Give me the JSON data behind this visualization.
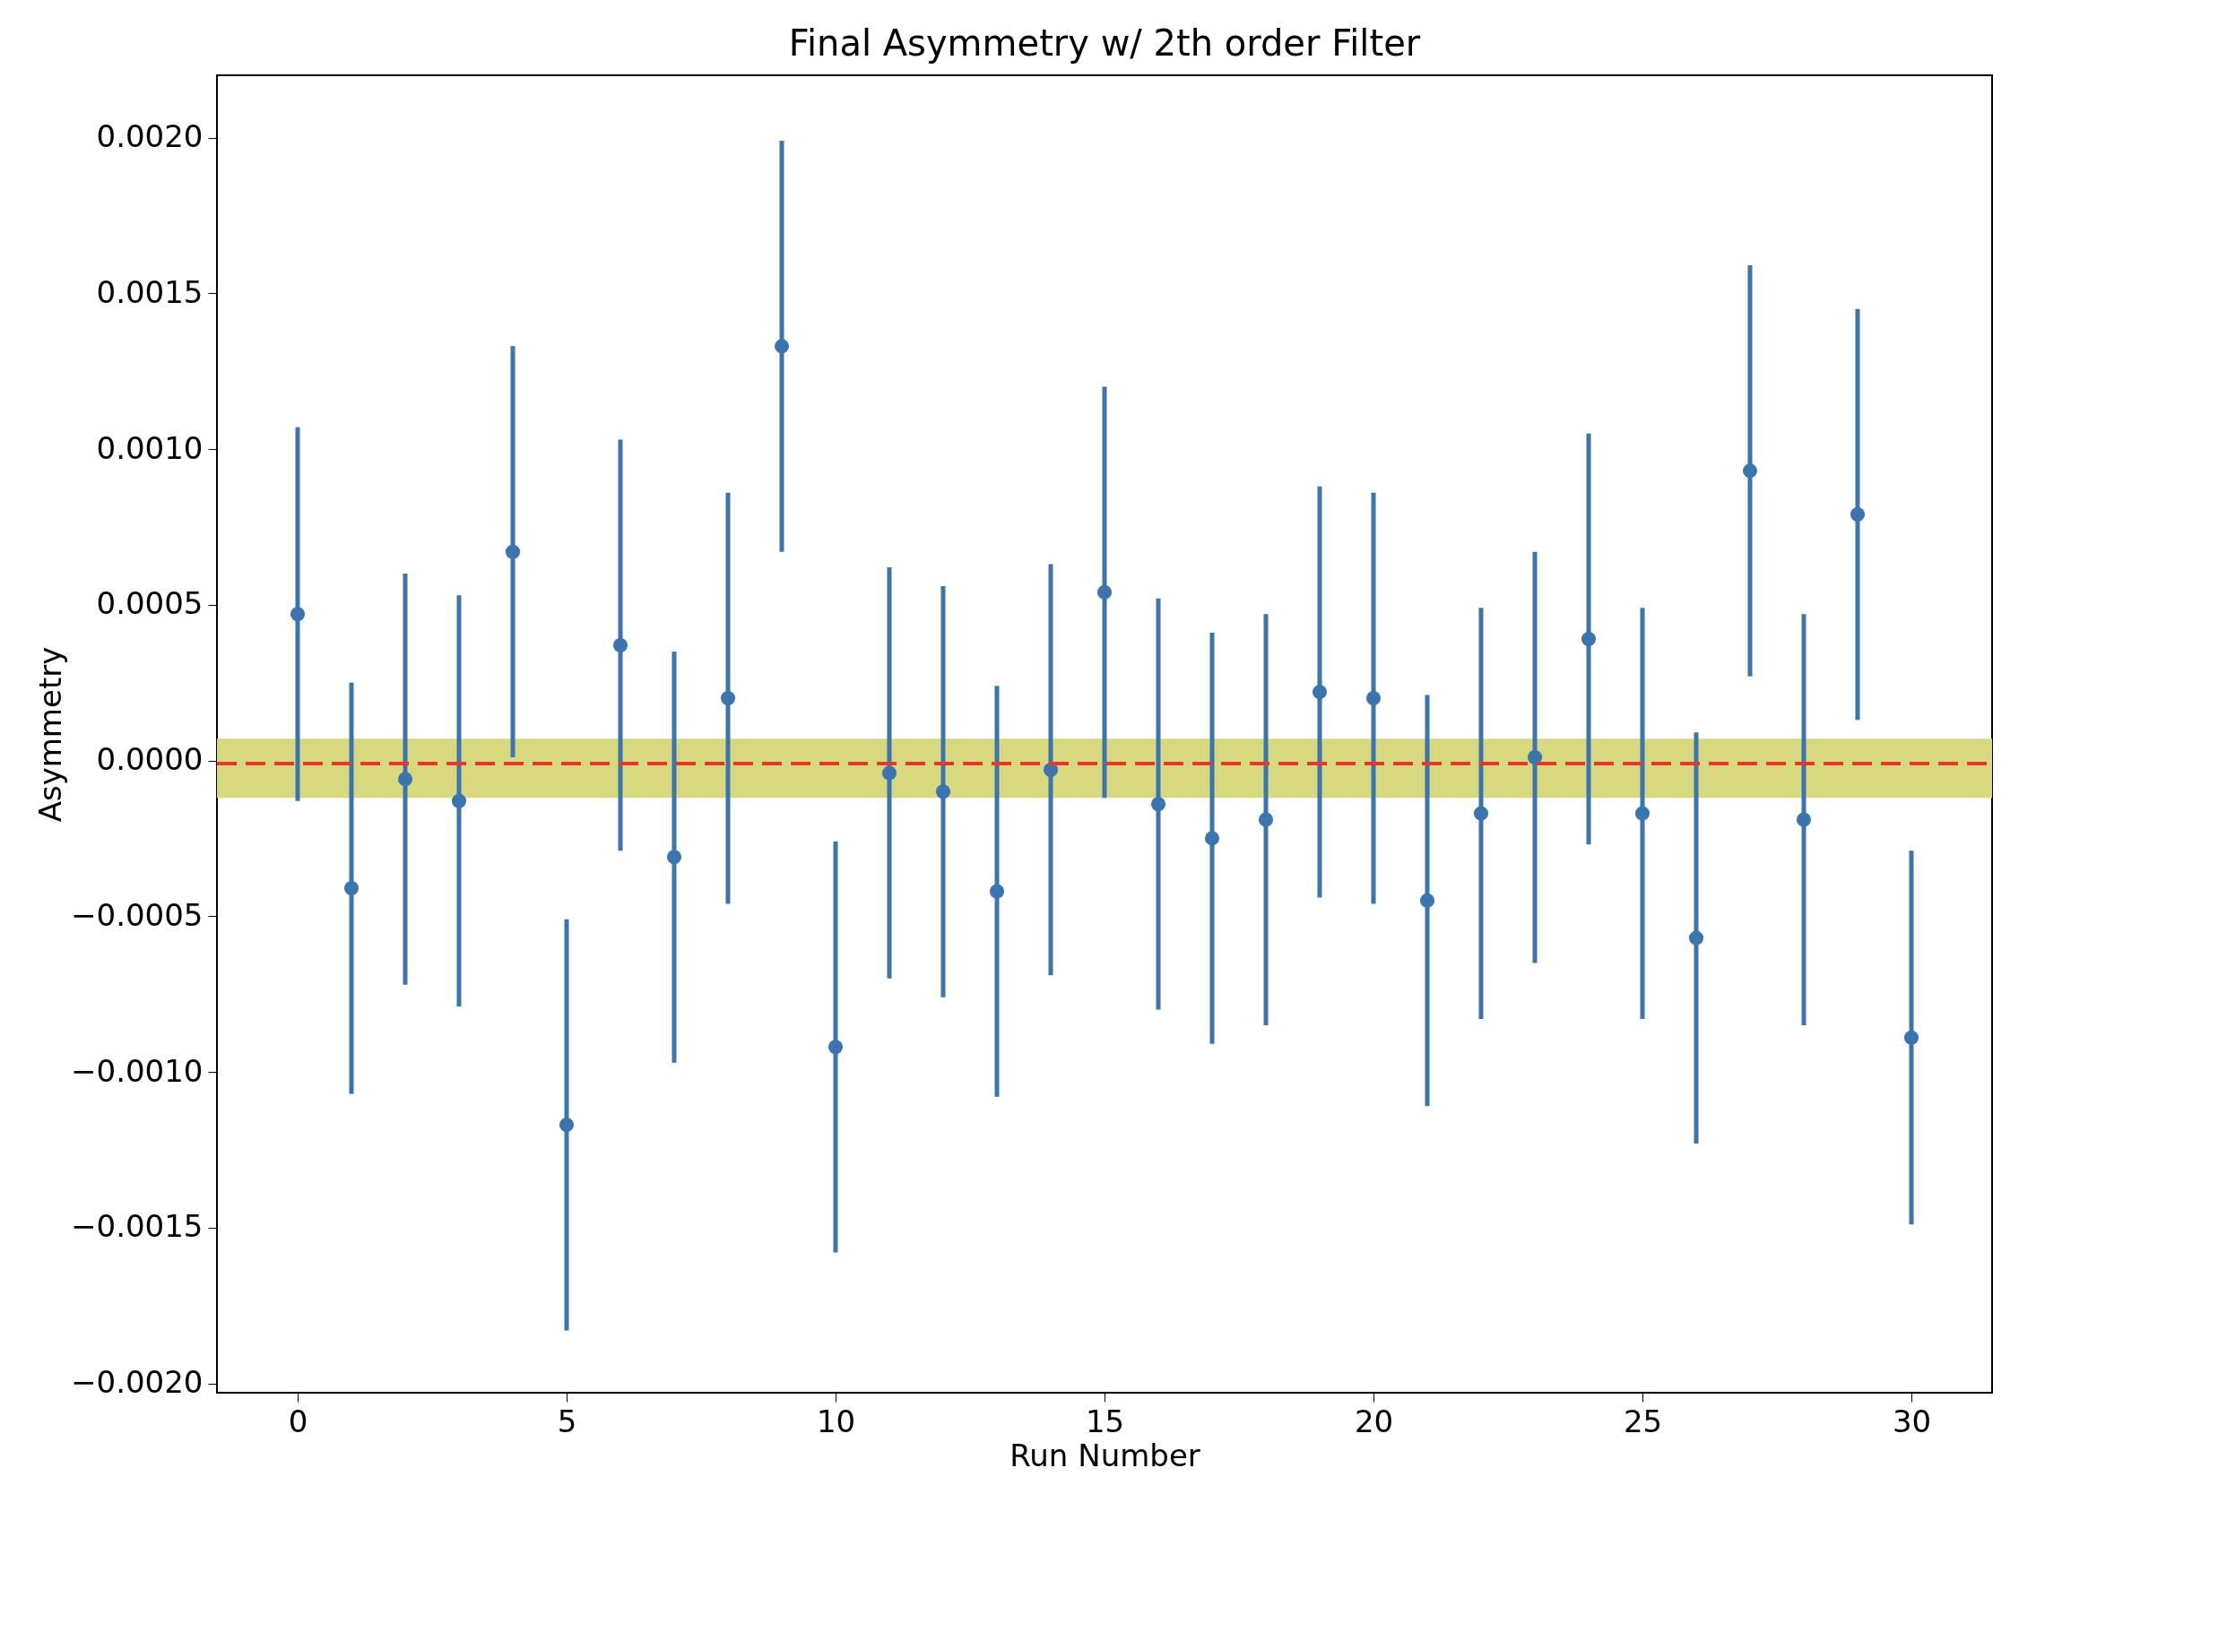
{
  "chart_data": {
    "type": "scatter",
    "title": "Final Asymmetry w/ 2th order Filter",
    "xlabel": "Run Number",
    "ylabel": "Asymmetry",
    "x": [
      0,
      1,
      2,
      3,
      4,
      5,
      6,
      7,
      8,
      9,
      10,
      11,
      12,
      13,
      14,
      15,
      16,
      17,
      18,
      19,
      20,
      21,
      22,
      23,
      24,
      25,
      26,
      27,
      28,
      29,
      30
    ],
    "series": [
      {
        "color": "#3a75b0",
        "values": [
          0.00047,
          -0.00041,
          -6e-05,
          -0.00013,
          0.00067,
          -0.00117,
          0.00037,
          -0.00031,
          0.0002,
          0.00133,
          -0.00092,
          -4e-05,
          -0.0001,
          -0.00042,
          -3e-05,
          0.00054,
          -0.00014,
          -0.00025,
          -0.00019,
          0.00022,
          0.0002,
          -0.00045,
          -0.00017,
          1e-05,
          0.00039,
          -0.00017,
          -0.00057,
          0.00093,
          -0.00019,
          0.00079,
          -0.00089
        ],
        "errors": [
          0.0006,
          0.00066,
          0.00066,
          0.00066,
          0.00066,
          0.00066,
          0.00066,
          0.00066,
          0.00066,
          0.00066,
          0.00066,
          0.00066,
          0.00066,
          0.00066,
          0.00066,
          0.00066,
          0.00066,
          0.00066,
          0.00066,
          0.00066,
          0.00066,
          0.00066,
          0.00066,
          0.00066,
          0.00066,
          0.00066,
          0.00066,
          0.00066,
          0.00066,
          0.00066,
          0.0006
        ]
      }
    ],
    "xlim": [
      -1.5,
      31.5
    ],
    "ylim": [
      -0.00203,
      0.0022
    ],
    "xticks": [
      0,
      5,
      10,
      15,
      20,
      25,
      30
    ],
    "yticks": [
      {
        "value": -0.002,
        "label": "−0.0020"
      },
      {
        "value": -0.0015,
        "label": "−0.0015"
      },
      {
        "value": -0.001,
        "label": "−0.0010"
      },
      {
        "value": -0.0005,
        "label": "−0.0005"
      },
      {
        "value": 0,
        "label": "0.0000"
      },
      {
        "value": 0.0005,
        "label": "0.0005"
      },
      {
        "value": 0.001,
        "label": "0.0010"
      },
      {
        "value": 0.0015,
        "label": "0.0015"
      },
      {
        "value": 0.002,
        "label": "0.0020"
      }
    ],
    "ref_lines": [
      {
        "axis": "y",
        "value": -1e-05,
        "color": "#e8362a",
        "line_style": "dashed"
      }
    ],
    "bands": [
      {
        "axis": "y",
        "from": -0.00012,
        "to": 7e-05,
        "color": "#d8d97e"
      }
    ],
    "grid": false,
    "marker": "circle"
  }
}
